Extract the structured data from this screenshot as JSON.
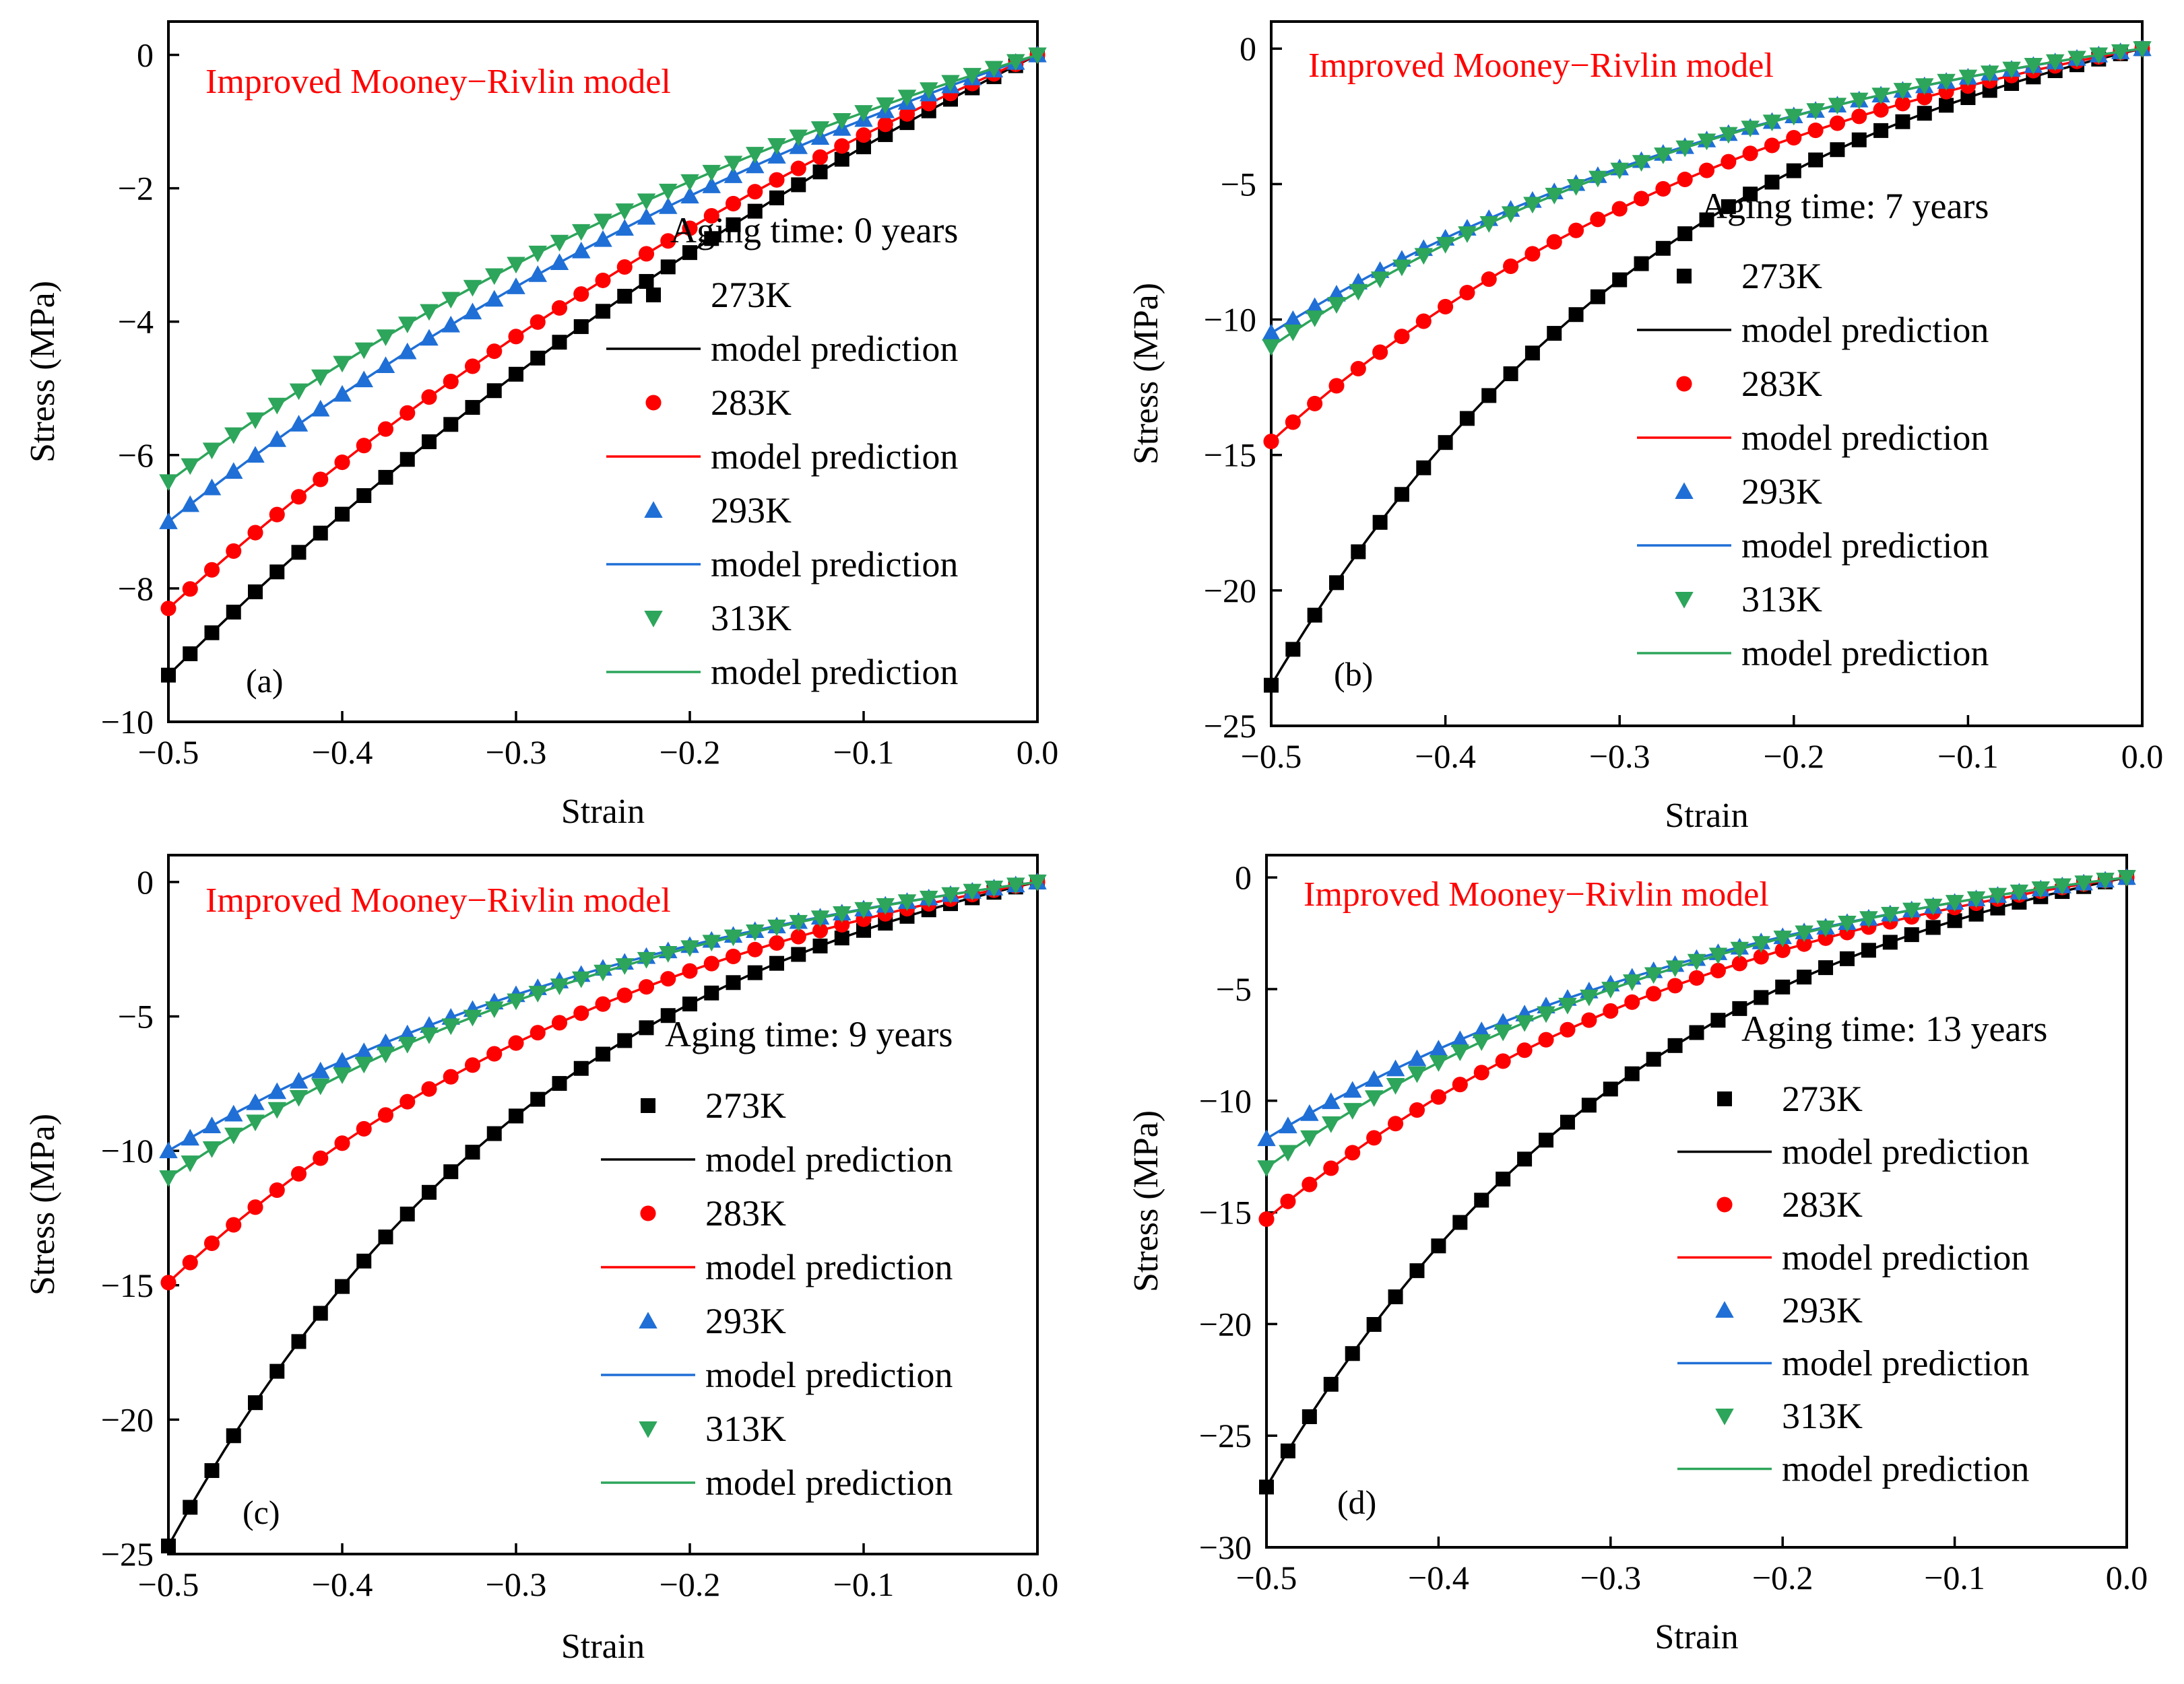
{
  "figure": {
    "model_title_color": "#ff0000",
    "marker_colors": {
      "273K": "#000000",
      "283K": "#ff0000",
      "293K": "#1f6fd6",
      "313K": "#2da55b"
    },
    "marker_shapes": {
      "273K": "square",
      "283K": "circle",
      "293K": "triangle-up",
      "313K": "triangle-down"
    }
  },
  "chart_data": [
    {
      "type": "scatter",
      "panel": "(a)",
      "title": "Improved Mooney−Rivlin model",
      "legend_title": "Aging time: 0 years",
      "xlabel": "Strain",
      "ylabel": "Stress (MPa)",
      "xlim": [
        -0.5,
        0.0
      ],
      "ylim": [
        -10,
        0.5
      ],
      "xticks": [
        -0.5,
        -0.4,
        -0.3,
        -0.2,
        -0.1,
        0.0
      ],
      "xtick_labels": [
        "−0.5",
        "−0.4",
        "−0.3",
        "−0.2",
        "−0.1",
        "0.0"
      ],
      "yticks": [
        -10,
        -8,
        -6,
        -4,
        -2,
        0
      ],
      "ytick_labels": [
        "−10",
        "−8",
        "−6",
        "−4",
        "−2",
        "0"
      ],
      "legend_position": "right",
      "series": [
        {
          "name": "273K",
          "stress_at_strain_min": -9.3,
          "curvature": 1.4
        },
        {
          "name": "283K",
          "stress_at_strain_min": -8.3,
          "curvature": 1.5
        },
        {
          "name": "293K",
          "stress_at_strain_min": -7.0,
          "curvature": 1.7
        },
        {
          "name": "313K",
          "stress_at_strain_min": -6.4,
          "curvature": 1.8
        }
      ],
      "legend_entries": [
        "273K",
        "model prediction",
        "283K",
        "model prediction",
        "293K",
        "model prediction",
        "313K",
        "model prediction"
      ]
    },
    {
      "type": "scatter",
      "panel": "(b)",
      "title": "Improved Mooney−Rivlin model",
      "legend_title": "Aging time: 7 years",
      "xlabel": "Strain",
      "ylabel": "Stress (MPa)",
      "xlim": [
        -0.5,
        0.0
      ],
      "ylim": [
        -25,
        1
      ],
      "xticks": [
        -0.5,
        -0.4,
        -0.3,
        -0.2,
        -0.1,
        0.0
      ],
      "xtick_labels": [
        "−0.5",
        "−0.4",
        "−0.3",
        "−0.2",
        "−0.1",
        "0.0"
      ],
      "yticks": [
        -25,
        -20,
        -15,
        -10,
        -5,
        0
      ],
      "ytick_labels": [
        "−25",
        "−20",
        "−15",
        "−10",
        "−5",
        "0"
      ],
      "legend_position": "right",
      "series": [
        {
          "name": "273K",
          "stress_at_strain_min": -23.5,
          "curvature": 4.0
        },
        {
          "name": "283K",
          "stress_at_strain_min": -14.5,
          "curvature": 3.2
        },
        {
          "name": "293K",
          "stress_at_strain_min": -10.5,
          "curvature": 3.0
        },
        {
          "name": "313K",
          "stress_at_strain_min": -11.0,
          "curvature": 3.2
        }
      ],
      "legend_entries": [
        "273K",
        "model prediction",
        "283K",
        "model prediction",
        "293K",
        "model prediction",
        "313K",
        "model prediction"
      ]
    },
    {
      "type": "scatter",
      "panel": "(c)",
      "title": "Improved Mooney−Rivlin model",
      "legend_title": "Aging time: 9 years",
      "xlabel": "Strain",
      "ylabel": "Stress (MPa)",
      "xlim": [
        -0.5,
        0.0
      ],
      "ylim": [
        -25,
        1
      ],
      "xticks": [
        -0.5,
        -0.4,
        -0.3,
        -0.2,
        -0.1,
        0.0
      ],
      "xtick_labels": [
        "−0.5",
        "−0.4",
        "−0.3",
        "−0.2",
        "−0.1",
        "0.0"
      ],
      "yticks": [
        -25,
        -20,
        -15,
        -10,
        -5,
        0
      ],
      "ytick_labels": [
        "−25",
        "−20",
        "−15",
        "−10",
        "−5",
        "0"
      ],
      "legend_position": "right",
      "series": [
        {
          "name": "273K",
          "stress_at_strain_min": -24.7,
          "curvature": 4.2
        },
        {
          "name": "283K",
          "stress_at_strain_min": -14.9,
          "curvature": 3.3
        },
        {
          "name": "293K",
          "stress_at_strain_min": -10.0,
          "curvature": 3.0
        },
        {
          "name": "313K",
          "stress_at_strain_min": -11.0,
          "curvature": 3.3
        }
      ],
      "legend_entries": [
        "273K",
        "model prediction",
        "283K",
        "model prediction",
        "293K",
        "model prediction",
        "313K",
        "model prediction"
      ]
    },
    {
      "type": "scatter",
      "panel": "(d)",
      "title": "Improved Mooney−Rivlin model",
      "legend_title": "Aging time: 13 years",
      "xlabel": "Strain",
      "ylabel": "Stress (MPa)",
      "xlim": [
        -0.5,
        0.0
      ],
      "ylim": [
        -30,
        1
      ],
      "xticks": [
        -0.5,
        -0.4,
        -0.3,
        -0.2,
        -0.1,
        0.0
      ],
      "xtick_labels": [
        "−0.5",
        "−0.4",
        "−0.3",
        "−0.2",
        "−0.1",
        "0.0"
      ],
      "yticks": [
        -30,
        -25,
        -20,
        -15,
        -10,
        -5,
        0
      ],
      "ytick_labels": [
        "−30",
        "−25",
        "−20",
        "−15",
        "−10",
        "−5",
        "0"
      ],
      "legend_position": "right",
      "series": [
        {
          "name": "273K",
          "stress_at_strain_min": -27.3,
          "curvature": 4.3
        },
        {
          "name": "283K",
          "stress_at_strain_min": -15.3,
          "curvature": 3.5
        },
        {
          "name": "293K",
          "stress_at_strain_min": -11.7,
          "curvature": 3.2
        },
        {
          "name": "313K",
          "stress_at_strain_min": -13.0,
          "curvature": 3.6
        }
      ],
      "legend_entries": [
        "273K",
        "model prediction",
        "283K",
        "model prediction",
        "293K",
        "model prediction",
        "313K",
        "model prediction"
      ]
    }
  ]
}
